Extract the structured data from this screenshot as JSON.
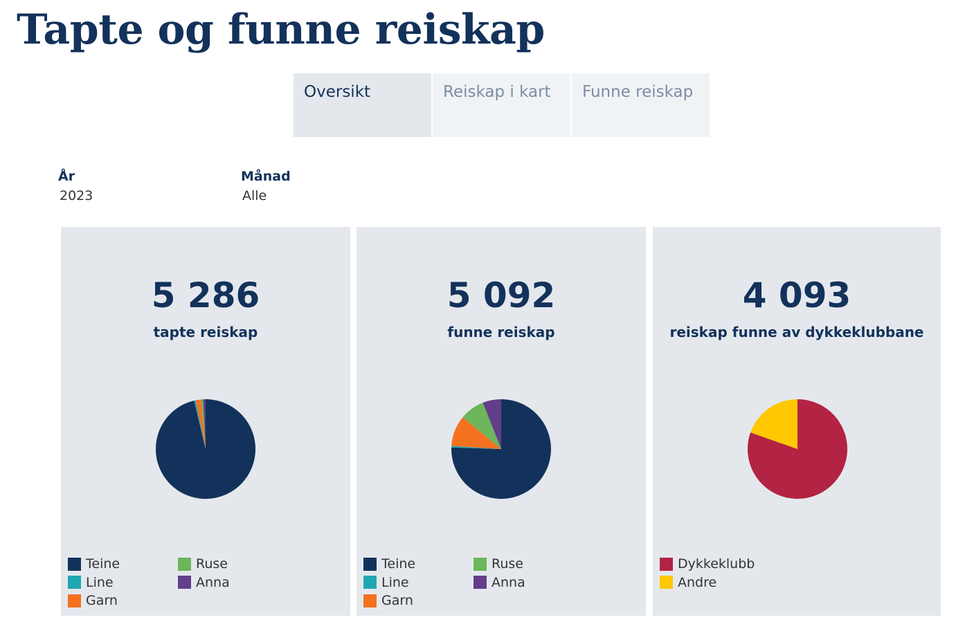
{
  "page": {
    "title": "Tapte og funne reiskap"
  },
  "tabs": [
    {
      "label": "Oversikt",
      "active": true
    },
    {
      "label": "Reiskap i kart",
      "active": false
    },
    {
      "label": "Funne reiskap",
      "active": false
    }
  ],
  "filters": {
    "year": {
      "label": "År",
      "value": "2023"
    },
    "month": {
      "label": "Månad",
      "value": "Alle"
    }
  },
  "panels": [
    {
      "big_number": "5 286",
      "subtitle": "tapte reiskap"
    },
    {
      "big_number": "5 092",
      "subtitle": "funne reiskap"
    },
    {
      "big_number": "4 093",
      "subtitle": "reiskap funne av dykkeklubbane"
    }
  ],
  "chart_data": [
    {
      "type": "pie",
      "title": "",
      "labels": [
        "Teine",
        "Line",
        "Garn",
        "Ruse",
        "Anna"
      ],
      "values": [
        96.3,
        0.5,
        1.7,
        0.7,
        0.8
      ],
      "colors": [
        "#13325b",
        "#20a7b2",
        "#f47120",
        "#6db65b",
        "#633e8a"
      ],
      "slice_order": [
        "Teine",
        "Line",
        "Garn",
        "Ruse",
        "Anna"
      ]
    },
    {
      "type": "pie",
      "title": "",
      "labels": [
        "Teine",
        "Line",
        "Garn",
        "Ruse",
        "Anna"
      ],
      "values": [
        75.5,
        0.5,
        10.0,
        8.0,
        6.0
      ],
      "colors": [
        "#13325b",
        "#20a7b2",
        "#f47120",
        "#6db65b",
        "#633e8a"
      ],
      "slice_order": [
        "Teine",
        "Line",
        "Garn",
        "Ruse",
        "Anna"
      ]
    },
    {
      "type": "pie",
      "title": "",
      "labels": [
        "Dykkeklubb",
        "Andre"
      ],
      "values": [
        80.4,
        19.6
      ],
      "colors": [
        "#b32343",
        "#ffc800"
      ],
      "slice_order": [
        "Dykkeklubb",
        "Andre"
      ]
    }
  ]
}
